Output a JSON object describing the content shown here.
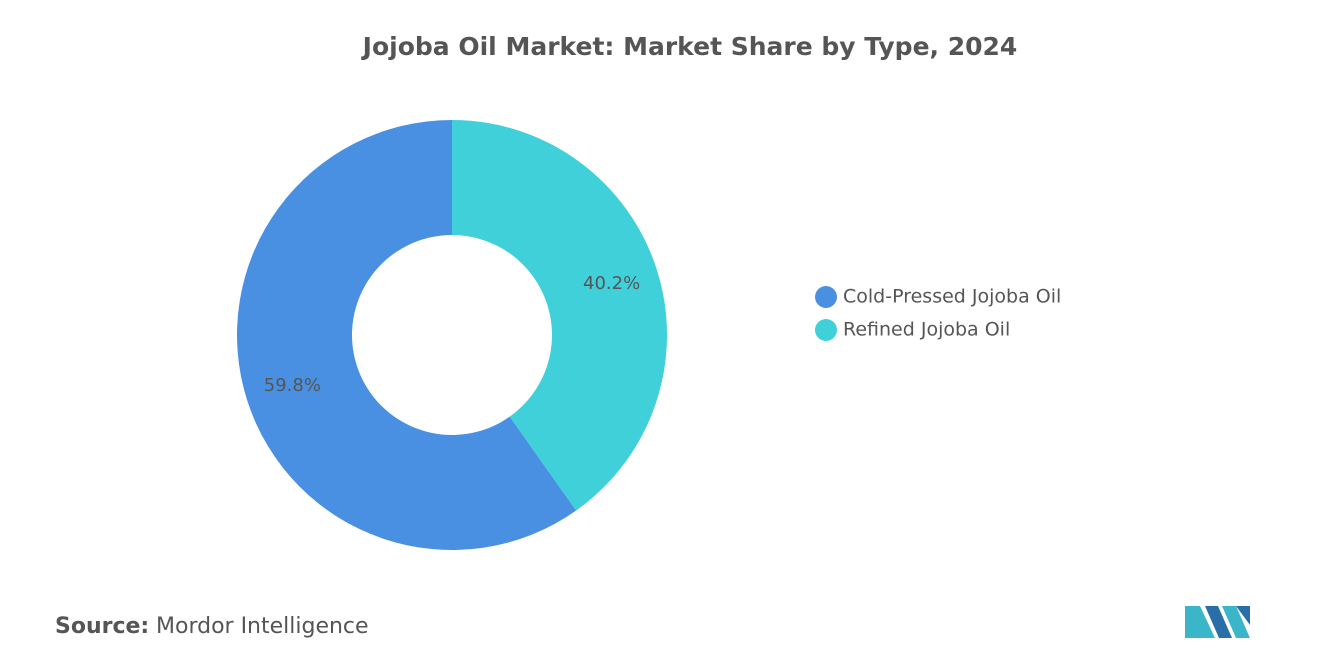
{
  "chart_data": {
    "type": "pie",
    "title": "Jojoba Oil Market: Market Share by Type, 2024",
    "categories": [
      "Cold-Pressed Jojoba Oil",
      "Refined Jojoba Oil"
    ],
    "values": [
      59.8,
      40.2
    ],
    "value_labels": [
      "59.8%",
      "40.2%"
    ],
    "colors": [
      "#4a90e2",
      "#40d0da"
    ],
    "donut": true,
    "direction": "counterclockwise",
    "legend": "right"
  },
  "source": {
    "label": "Source:",
    "text": "Mordor Intelligence"
  }
}
